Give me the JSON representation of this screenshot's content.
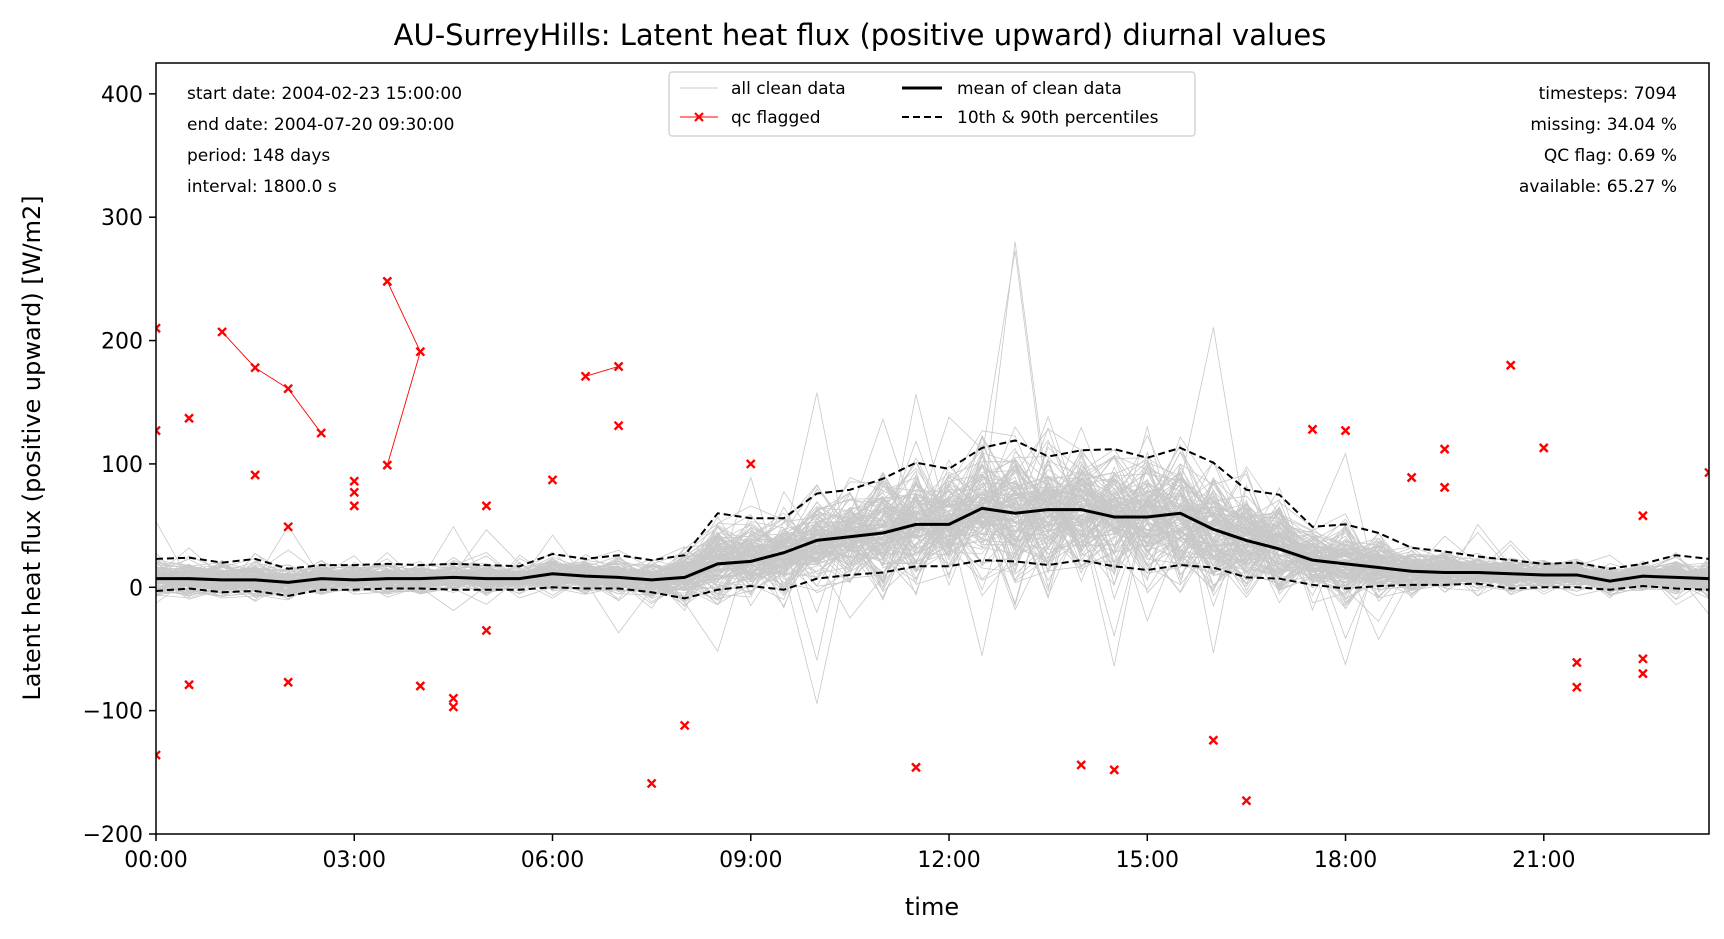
{
  "chart_data": {
    "type": "line",
    "title": "AU-SurreyHills: Latent heat flux (positive upward) diurnal values",
    "xlabel": "time",
    "ylabel": "Latent heat flux (positive upward) [W/m2]",
    "xlim": [
      0,
      23.5
    ],
    "ylim": [
      -200,
      425
    ],
    "x_ticks": [
      0,
      3,
      6,
      9,
      12,
      15,
      18,
      21
    ],
    "x_tick_labels": [
      "00:00",
      "03:00",
      "06:00",
      "09:00",
      "12:00",
      "15:00",
      "18:00",
      "21:00"
    ],
    "y_ticks": [
      -200,
      -100,
      0,
      100,
      200,
      300,
      400
    ],
    "y_tick_labels": [
      "−200",
      "−100",
      "0",
      "100",
      "200",
      "300",
      "400"
    ],
    "info_left": [
      "start date: 2004-02-23 15:00:00",
      "end date: 2004-07-20 09:30:00",
      "period: 148 days",
      "interval: 1800.0 s"
    ],
    "info_right": [
      "timesteps: 7094",
      "missing: 34.04 %",
      "QC flag: 0.69 %",
      "available: 65.27 %"
    ],
    "legend": {
      "placement": "upper center",
      "entries": [
        {
          "label": "all clean data",
          "style": "thin-grey"
        },
        {
          "label": "mean of clean data",
          "style": "solid-black"
        },
        {
          "label": "qc flagged",
          "style": "red-x"
        },
        {
          "label": "10th & 90th percentiles",
          "style": "dashed-black"
        }
      ]
    },
    "colors": {
      "clean": "#c8c8c8",
      "mean": "#000000",
      "percentile": "#000000",
      "qc": "#ff0000"
    },
    "x": [
      0,
      0.5,
      1,
      1.5,
      2,
      2.5,
      3,
      3.5,
      4,
      4.5,
      5,
      5.5,
      6,
      6.5,
      7,
      7.5,
      8,
      8.5,
      9,
      9.5,
      10,
      10.5,
      11,
      11.5,
      12,
      12.5,
      13,
      13.5,
      14,
      14.5,
      15,
      15.5,
      16,
      16.5,
      17,
      17.5,
      18,
      18.5,
      19,
      19.5,
      20,
      20.5,
      21,
      21.5,
      22,
      22.5,
      23,
      23.5
    ],
    "series": [
      {
        "name": "mean of clean data",
        "values": [
          7,
          7,
          6,
          6,
          4,
          7,
          6,
          7,
          7,
          8,
          7,
          7,
          11,
          9,
          8,
          6,
          8,
          19,
          21,
          28,
          38,
          41,
          44,
          51,
          51,
          64,
          60,
          63,
          63,
          57,
          57,
          60,
          47,
          38,
          31,
          22,
          19,
          16,
          13,
          12,
          12,
          11,
          10,
          10,
          5,
          9,
          8,
          7
        ]
      },
      {
        "name": "10th percentile",
        "values": [
          -3,
          -1,
          -4,
          -3,
          -7,
          -2,
          -2,
          -1,
          -1,
          -2,
          -2,
          -2,
          0,
          -1,
          -1,
          -4,
          -9,
          -2,
          1,
          -2,
          7,
          10,
          12,
          17,
          17,
          22,
          21,
          18,
          22,
          17,
          14,
          18,
          16,
          8,
          7,
          2,
          -1,
          1,
          2,
          2,
          3,
          -1,
          0,
          0,
          -2,
          1,
          -1,
          -2
        ]
      },
      {
        "name": "90th percentile",
        "values": [
          23,
          24,
          20,
          23,
          15,
          18,
          18,
          19,
          18,
          19,
          18,
          17,
          27,
          23,
          26,
          22,
          26,
          60,
          56,
          56,
          76,
          79,
          88,
          101,
          96,
          113,
          119,
          106,
          111,
          112,
          105,
          113,
          101,
          79,
          75,
          49,
          51,
          44,
          32,
          29,
          25,
          22,
          19,
          20,
          15,
          19,
          26,
          23
        ]
      }
    ],
    "qc_flagged_points": [
      {
        "x": 0,
        "y": 210
      },
      {
        "x": 0,
        "y": 127
      },
      {
        "x": 0,
        "y": -136
      },
      {
        "x": 0.5,
        "y": 137
      },
      {
        "x": 0.5,
        "y": -79
      },
      {
        "x": 1,
        "y": 207
      },
      {
        "x": 1.5,
        "y": 178
      },
      {
        "x": 1.5,
        "y": 91
      },
      {
        "x": 2,
        "y": 161
      },
      {
        "x": 2,
        "y": 49
      },
      {
        "x": 2,
        "y": -77
      },
      {
        "x": 2.5,
        "y": 125
      },
      {
        "x": 3,
        "y": 86
      },
      {
        "x": 3,
        "y": 77
      },
      {
        "x": 3,
        "y": 66
      },
      {
        "x": 3.5,
        "y": 248
      },
      {
        "x": 3.5,
        "y": 99
      },
      {
        "x": 4,
        "y": 191
      },
      {
        "x": 4,
        "y": -80
      },
      {
        "x": 4.5,
        "y": -90
      },
      {
        "x": 4.5,
        "y": -97
      },
      {
        "x": 5,
        "y": 66
      },
      {
        "x": 5,
        "y": -35
      },
      {
        "x": 6,
        "y": 87
      },
      {
        "x": 6.5,
        "y": 171
      },
      {
        "x": 7,
        "y": 179
      },
      {
        "x": 7,
        "y": 131
      },
      {
        "x": 7.5,
        "y": -159
      },
      {
        "x": 8,
        "y": -112
      },
      {
        "x": 9,
        "y": 100
      },
      {
        "x": 11.5,
        "y": -146
      },
      {
        "x": 14,
        "y": -144
      },
      {
        "x": 14.5,
        "y": -148
      },
      {
        "x": 16,
        "y": -124
      },
      {
        "x": 16.5,
        "y": -173
      },
      {
        "x": 17.5,
        "y": 128
      },
      {
        "x": 18,
        "y": 127
      },
      {
        "x": 19,
        "y": 89
      },
      {
        "x": 19.5,
        "y": 112
      },
      {
        "x": 19.5,
        "y": 81
      },
      {
        "x": 20.5,
        "y": 180
      },
      {
        "x": 21,
        "y": 113
      },
      {
        "x": 21.5,
        "y": -61
      },
      {
        "x": 21.5,
        "y": -81
      },
      {
        "x": 22.5,
        "y": 58
      },
      {
        "x": 22.5,
        "y": -58
      },
      {
        "x": 22.5,
        "y": -70
      },
      {
        "x": 23.5,
        "y": 93
      }
    ],
    "qc_flagged_segments": [
      [
        {
          "x": 1,
          "y": 207
        },
        {
          "x": 1.5,
          "y": 178
        },
        {
          "x": 2,
          "y": 161
        },
        {
          "x": 2.5,
          "y": 125
        }
      ],
      [
        {
          "x": 3.5,
          "y": 248
        },
        {
          "x": 4,
          "y": 191
        },
        {
          "x": 3.5,
          "y": 99
        }
      ],
      [
        {
          "x": 6.5,
          "y": 171
        },
        {
          "x": 7,
          "y": 179
        }
      ]
    ]
  }
}
